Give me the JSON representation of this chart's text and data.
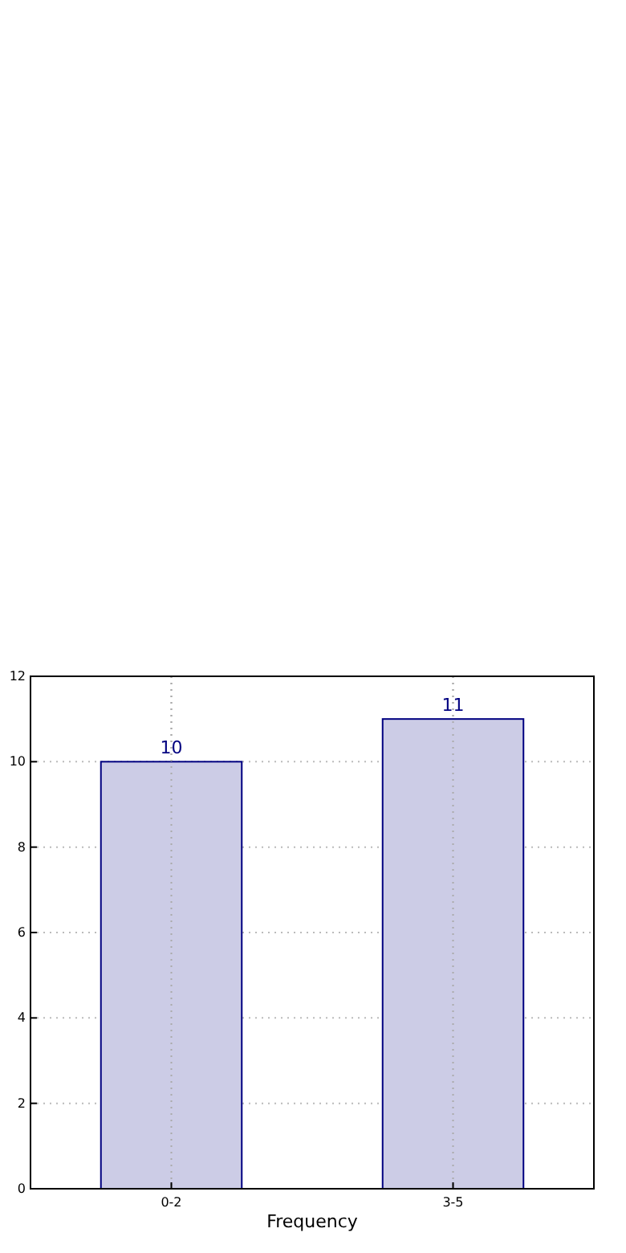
{
  "chart_data": {
    "type": "bar",
    "xlabel": "Frequency",
    "categories": [
      "0-2",
      "3-5"
    ],
    "series": [
      {
        "color": "#ccccE6",
        "values": [
          10,
          11
        ]
      }
    ],
    "ylim": [
      0,
      12
    ],
    "yticks": [
      0,
      2,
      4,
      6,
      8,
      10,
      12
    ],
    "grid": true,
    "data_labels": true
  }
}
